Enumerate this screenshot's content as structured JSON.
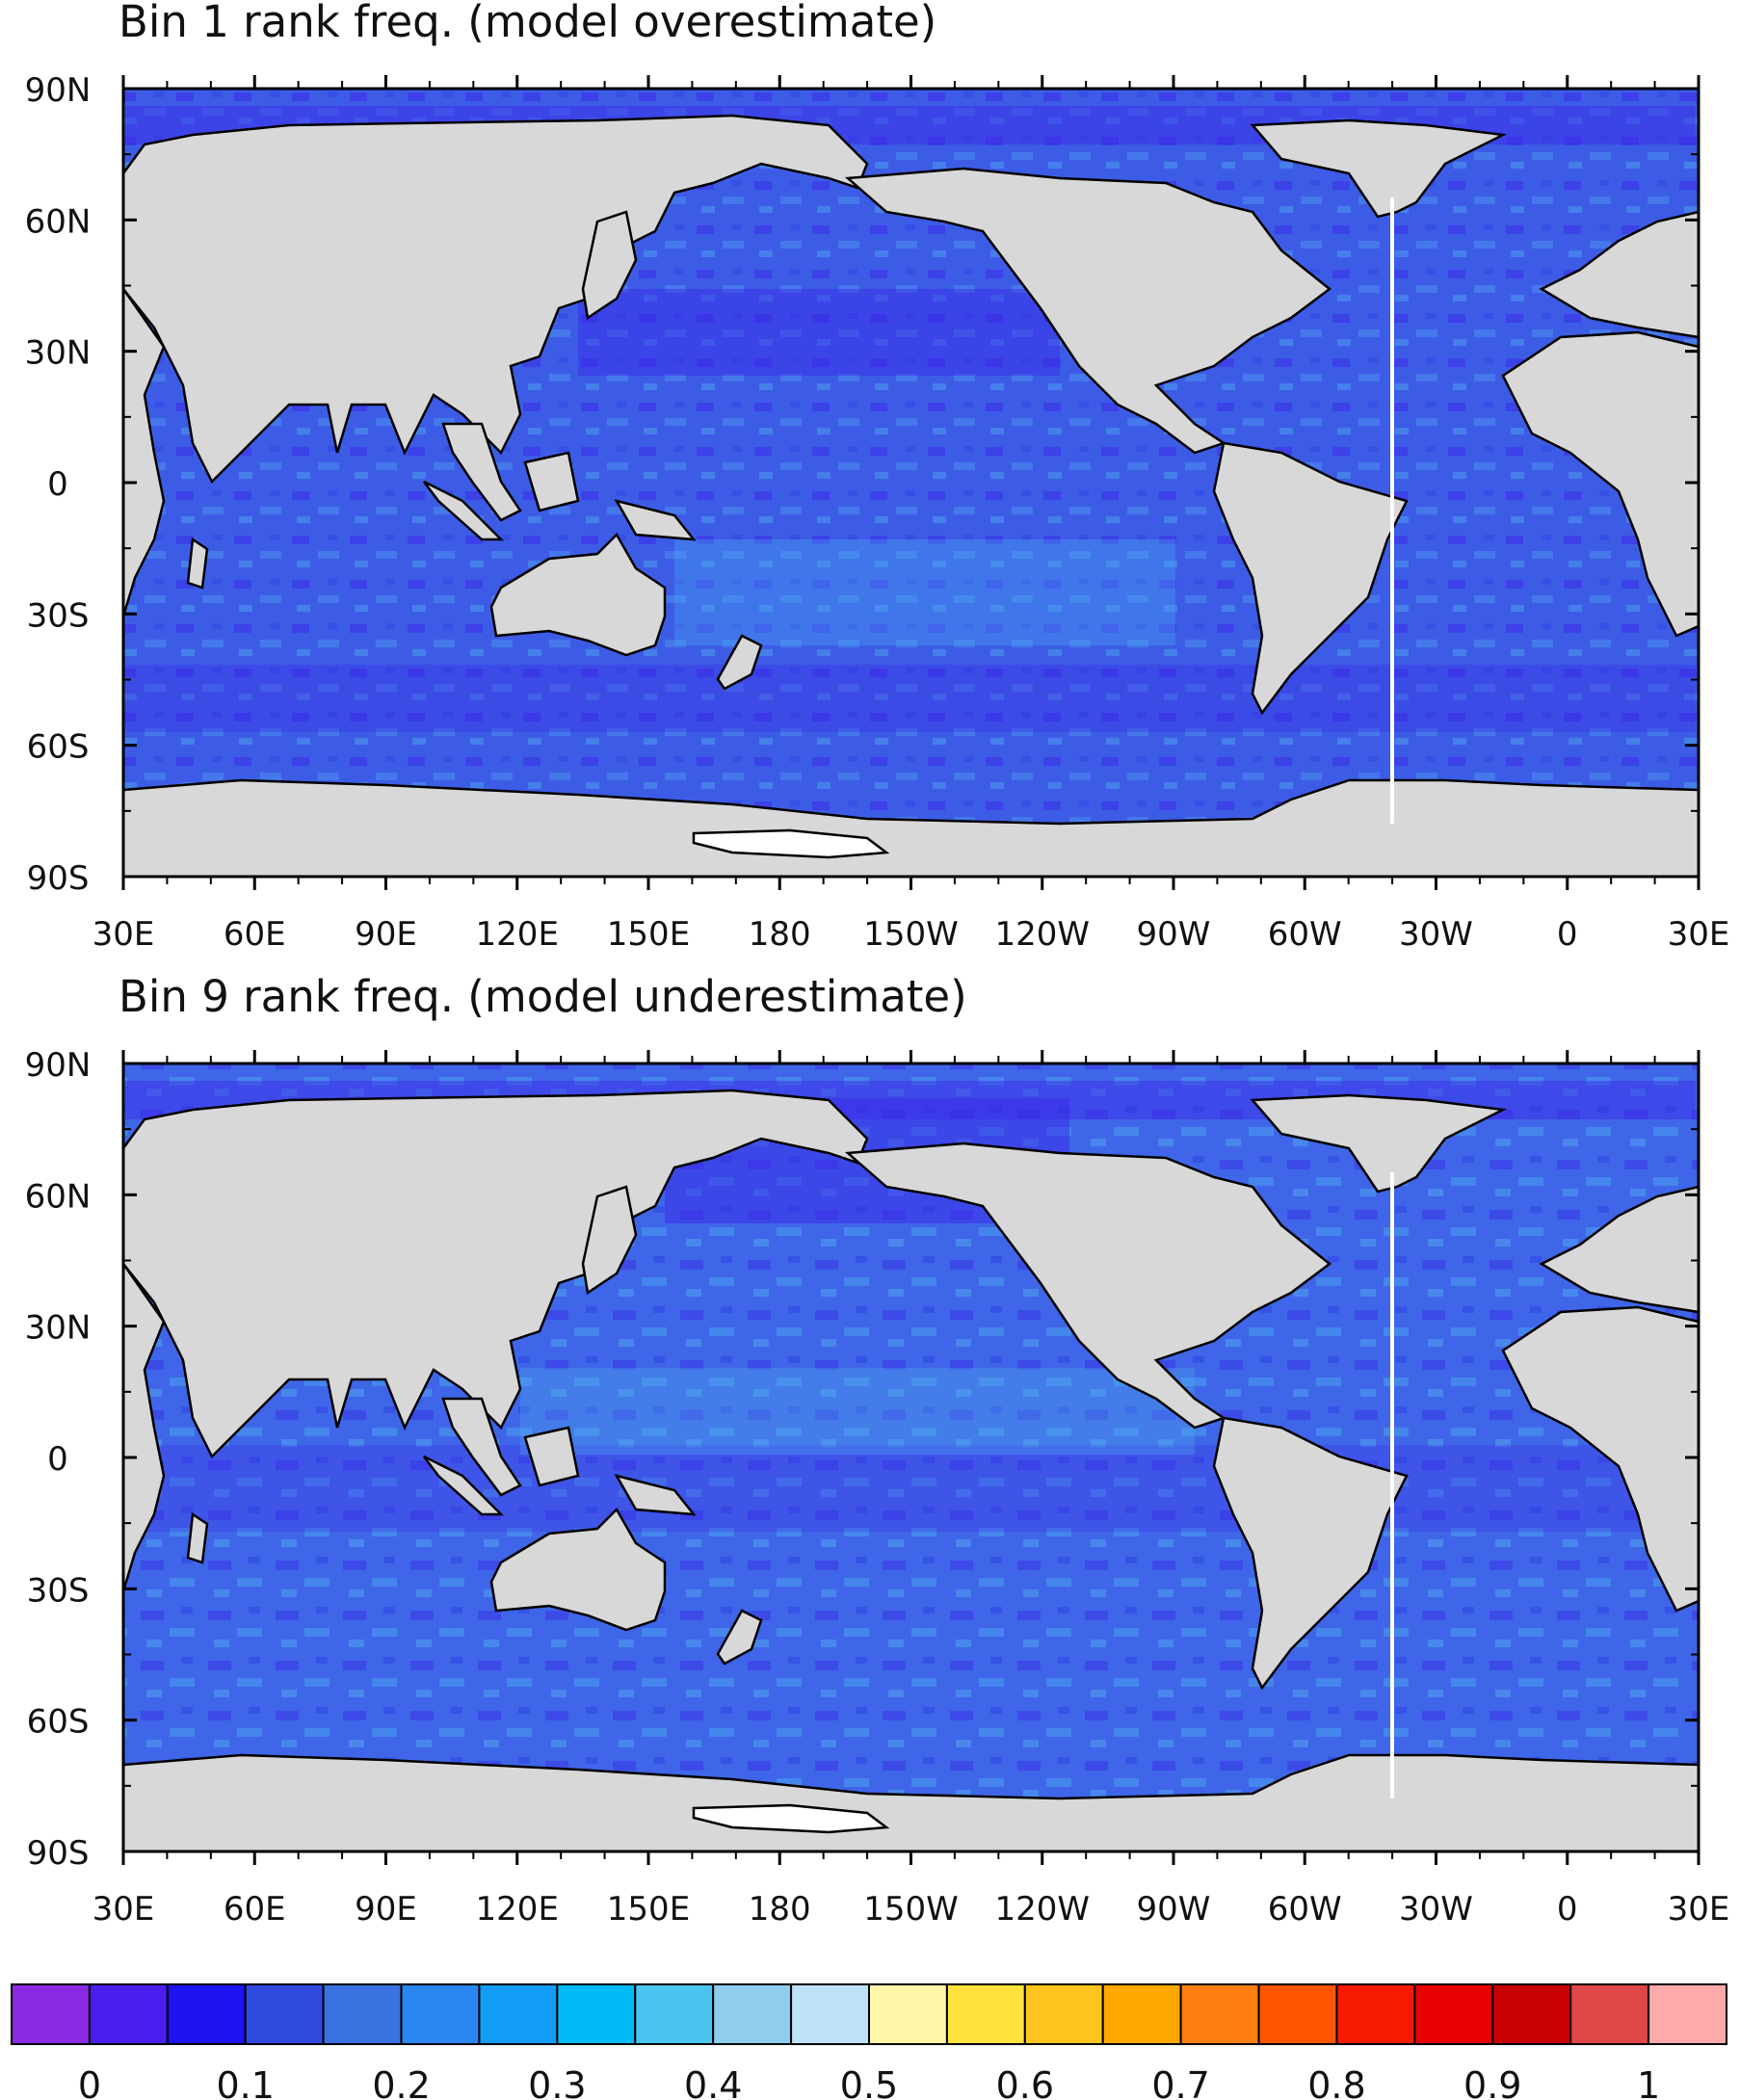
{
  "panels": [
    {
      "id": "bin1",
      "title": "Bin 1 rank freq. (model overestimate)",
      "lat_labels": [
        "90N",
        "60N",
        "30N",
        "0",
        "30S",
        "60S",
        "90S"
      ],
      "lon_labels": [
        "30E",
        "60E",
        "90E",
        "120E",
        "150E",
        "180",
        "150W",
        "120W",
        "90W",
        "60W",
        "30W",
        "0",
        "30E"
      ]
    },
    {
      "id": "bin9",
      "title": "Bin 9 rank freq. (model underestimate)",
      "lat_labels": [
        "90N",
        "60N",
        "30N",
        "0",
        "30S",
        "60S",
        "90S"
      ],
      "lon_labels": [
        "30E",
        "60E",
        "90E",
        "120E",
        "150E",
        "180",
        "150W",
        "120W",
        "90W",
        "60W",
        "30W",
        "0",
        "30E"
      ]
    }
  ],
  "colorbar": {
    "labels": [
      "0",
      "0.1",
      "0.2",
      "0.3",
      "0.4",
      "0.5",
      "0.6",
      "0.7",
      "0.8",
      "0.9",
      "1"
    ],
    "colors": [
      "#8a2be2",
      "#4b1ef0",
      "#1d12f0",
      "#2f4be0",
      "#3a72e0",
      "#2a86f0",
      "#139cf5",
      "#00bbf5",
      "#4ac4f0",
      "#8fcdee",
      "#bde2f5",
      "#fff6a8",
      "#ffe23e",
      "#ffc51e",
      "#ffa800",
      "#ff7e10",
      "#ff5500",
      "#f51a00",
      "#e90000",
      "#c80000",
      "#e04848",
      "#ffaaaa"
    ]
  },
  "colors": {
    "land": "#d8d8d8",
    "ocean": "#3d5ce6",
    "ocean_dark": "#3b2be8",
    "ocean_light": "#4a9bee",
    "ice": "#ffffff",
    "frame": "#000000"
  }
}
